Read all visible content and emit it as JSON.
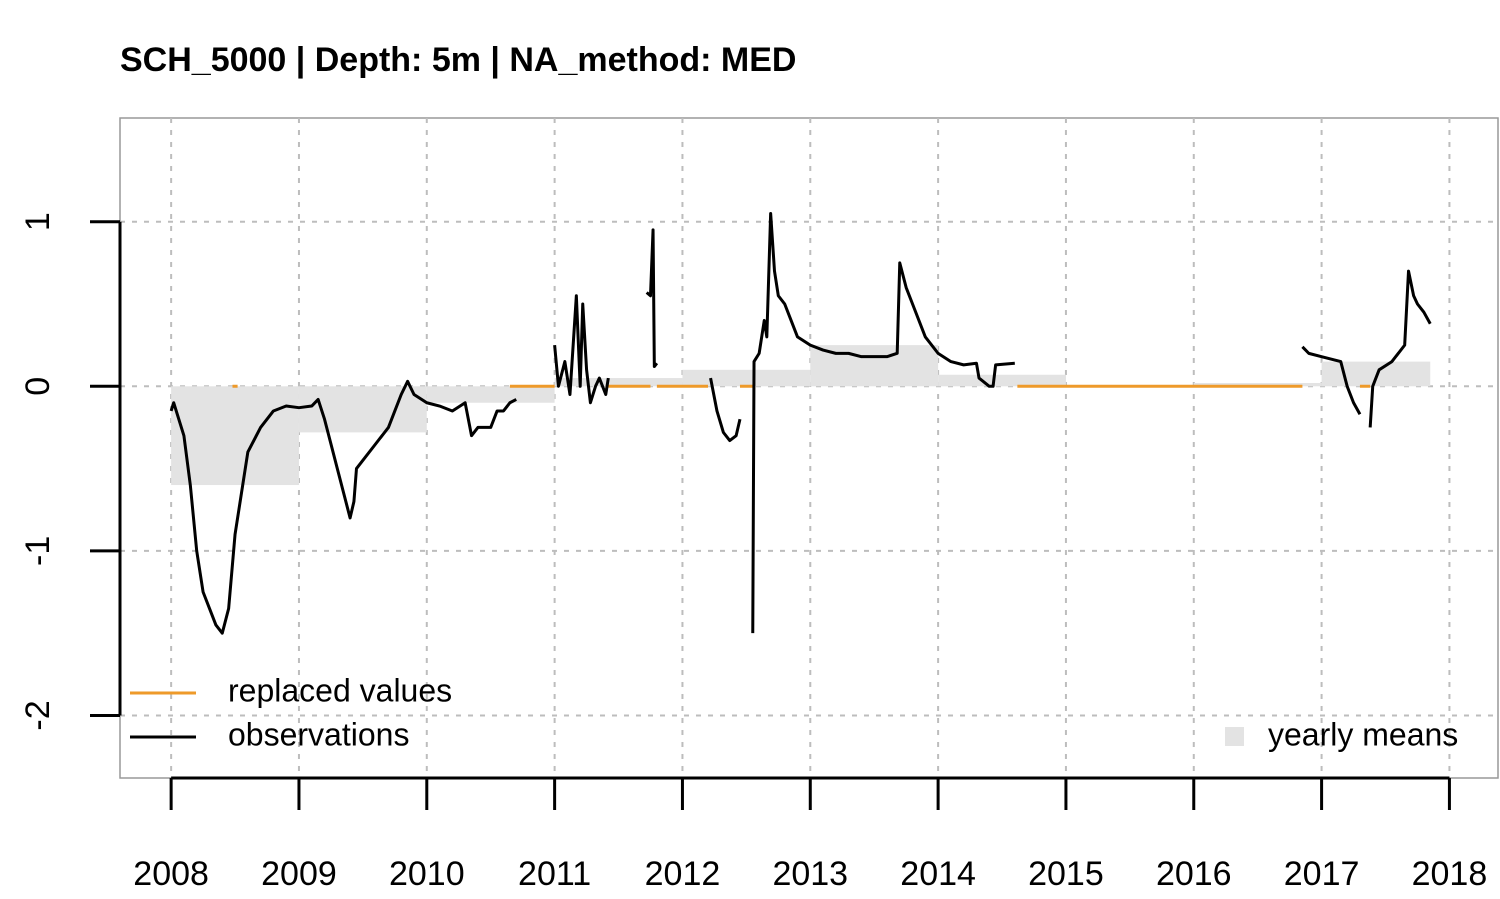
{
  "chart_data": {
    "type": "line",
    "title": "SCH_5000 | Depth: 5m | NA_method: MED",
    "xlim": [
      2007.6,
      2018.38
    ],
    "ylim": [
      -2.38,
      1.63
    ],
    "xticks": [
      2008,
      2009,
      2010,
      2011,
      2012,
      2013,
      2014,
      2015,
      2016,
      2017,
      2018
    ],
    "yticks": [
      -2,
      -1,
      0,
      1
    ],
    "grid": true,
    "series": [
      {
        "name": "yearly means",
        "type": "bar",
        "color": "#e3e3e3",
        "legend": "bottomright",
        "bins": [
          2008,
          2009,
          2010,
          2011,
          2012,
          2013,
          2014,
          2015,
          2016,
          2017,
          2017.85
        ],
        "values": [
          -0.6,
          -0.28,
          -0.1,
          0.05,
          0.1,
          0.25,
          0.07,
          0.005,
          0.02,
          0.15
        ]
      },
      {
        "name": "replaced values",
        "type": "line",
        "color": "#ee9a2a",
        "legend": "bottomleft",
        "x": [
          2008.48,
          2008.52,
          null,
          2010.65,
          2011.0,
          null,
          2011.42,
          2011.75,
          null,
          2011.8,
          2012.2,
          null,
          2012.45,
          2012.55,
          null,
          2014.62,
          2016.85,
          null,
          2017.3,
          2017.38
        ],
        "values": [
          0,
          0,
          null,
          0,
          0,
          null,
          0,
          0,
          null,
          0,
          0,
          null,
          0,
          0,
          null,
          0,
          0,
          null,
          0,
          0
        ]
      },
      {
        "name": "observations",
        "type": "line",
        "color": "#000000",
        "legend": "bottomleft",
        "x": [
          2008.0,
          2008.02,
          2008.1,
          2008.15,
          2008.2,
          2008.25,
          2008.3,
          2008.35,
          2008.4,
          2008.45,
          2008.5,
          2008.55,
          2008.6,
          2008.7,
          2008.8,
          2008.9,
          2009.0,
          2009.1,
          2009.15,
          2009.2,
          2009.25,
          2009.3,
          2009.35,
          2009.4,
          2009.43,
          2009.45,
          2009.5,
          2009.6,
          2009.7,
          2009.75,
          2009.8,
          2009.85,
          2009.9,
          2010.0,
          2010.1,
          2010.2,
          2010.3,
          2010.35,
          2010.4,
          2010.5,
          2010.55,
          2010.6,
          2010.65,
          2010.7,
          null,
          2011.0,
          2011.03,
          2011.08,
          2011.12,
          2011.17,
          2011.2,
          2011.22,
          2011.25,
          2011.28,
          2011.32,
          2011.35,
          2011.4,
          2011.42,
          null,
          2011.72,
          2011.75,
          2011.77,
          2011.78,
          2011.8,
          null,
          2012.22,
          2012.27,
          2012.32,
          2012.37,
          2012.42,
          2012.45,
          null,
          2012.55,
          2012.56,
          2012.6,
          2012.64,
          2012.66,
          2012.69,
          2012.72,
          2012.75,
          2012.8,
          2012.85,
          2012.9,
          2013.0,
          2013.1,
          2013.2,
          2013.3,
          2013.4,
          2013.6,
          2013.68,
          2013.7,
          2013.75,
          2013.8,
          2013.9,
          2014.0,
          2014.1,
          2014.2,
          2014.3,
          2014.32,
          2014.4,
          2014.43,
          2014.45,
          2014.6,
          null,
          2016.85,
          2016.9,
          2017.0,
          2017.15,
          2017.2,
          2017.25,
          2017.3,
          null,
          2017.38,
          2017.4,
          2017.45,
          2017.55,
          2017.65,
          2017.68,
          2017.72,
          2017.75,
          2017.8,
          2017.85
        ],
        "values": [
          -0.15,
          -0.1,
          -0.3,
          -0.6,
          -1.0,
          -1.25,
          -1.35,
          -1.45,
          -1.5,
          -1.35,
          -0.9,
          -0.65,
          -0.4,
          -0.25,
          -0.15,
          -0.12,
          -0.13,
          -0.12,
          -0.08,
          -0.2,
          -0.35,
          -0.5,
          -0.65,
          -0.8,
          -0.7,
          -0.5,
          -0.45,
          -0.35,
          -0.25,
          -0.15,
          -0.05,
          0.03,
          -0.05,
          -0.1,
          -0.12,
          -0.15,
          -0.1,
          -0.3,
          -0.25,
          -0.25,
          -0.15,
          -0.15,
          -0.1,
          -0.08,
          null,
          0.25,
          0.0,
          0.15,
          -0.05,
          0.55,
          0.0,
          0.5,
          0.1,
          -0.1,
          0.0,
          0.05,
          -0.05,
          0.05,
          null,
          0.57,
          0.55,
          0.95,
          0.12,
          0.14,
          null,
          0.05,
          -0.15,
          -0.28,
          -0.33,
          -0.3,
          -0.2,
          null,
          -1.5,
          0.15,
          0.2,
          0.4,
          0.3,
          1.05,
          0.7,
          0.55,
          0.5,
          0.4,
          0.3,
          0.25,
          0.22,
          0.2,
          0.2,
          0.18,
          0.18,
          0.2,
          0.75,
          0.6,
          0.5,
          0.3,
          0.2,
          0.15,
          0.13,
          0.14,
          0.05,
          0.0,
          0.0,
          0.13,
          0.14,
          null,
          0.24,
          0.2,
          0.18,
          0.15,
          0.0,
          -0.1,
          -0.17,
          null,
          -0.25,
          0.0,
          0.1,
          0.15,
          0.25,
          0.7,
          0.55,
          0.5,
          0.45,
          0.38
        ]
      }
    ]
  }
}
